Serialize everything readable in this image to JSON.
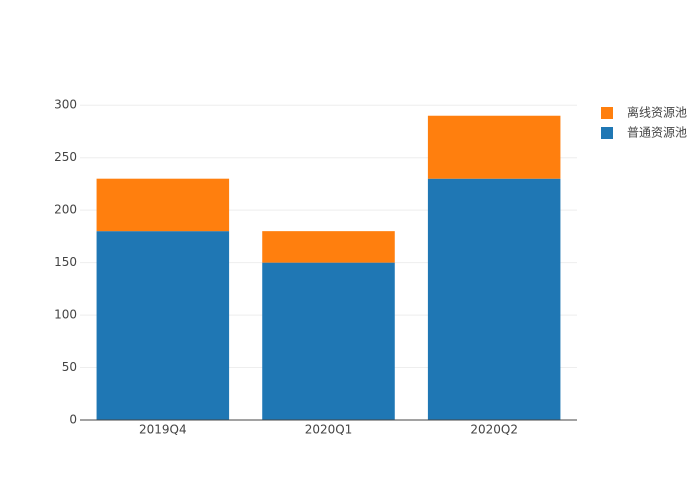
{
  "chart_data": {
    "type": "stacked_bar",
    "categories": [
      "2019Q4",
      "2020Q1",
      "2020Q2"
    ],
    "series": [
      {
        "name": "普通资源池",
        "color": "#1f77b4",
        "values": [
          180,
          150,
          230
        ]
      },
      {
        "name": "离线资源池",
        "color": "#ff7f0e",
        "values": [
          50,
          30,
          60
        ]
      }
    ],
    "ylim": [
      0,
      305
    ],
    "yticks": [
      0,
      50,
      100,
      150,
      200,
      250,
      300
    ],
    "grid": true
  }
}
